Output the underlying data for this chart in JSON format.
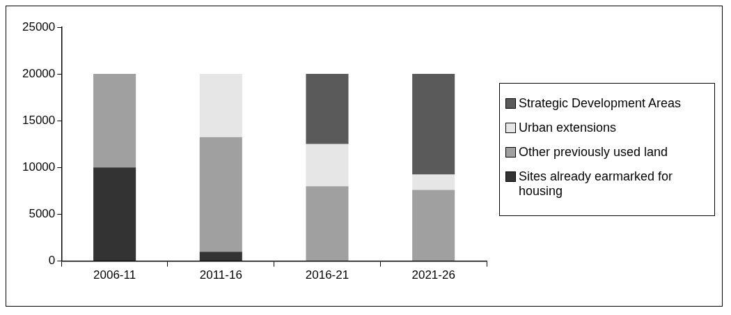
{
  "chart_data": {
    "type": "bar",
    "stacked": true,
    "categories": [
      "2006-11",
      "2011-16",
      "2016-21",
      "2021-26"
    ],
    "series": [
      {
        "name": "Sites already earmarked for housing",
        "color": "#333333",
        "values": [
          10000,
          1000,
          0,
          0
        ]
      },
      {
        "name": "Other previously used land",
        "color": "#a0a0a0",
        "values": [
          10000,
          12250,
          8000,
          7600
        ]
      },
      {
        "name": "Urban extensions",
        "color": "#e6e6e6",
        "values": [
          0,
          6750,
          4500,
          1650
        ]
      },
      {
        "name": "Strategic Development Areas",
        "color": "#5a5a5a",
        "values": [
          0,
          0,
          7500,
          10750
        ]
      }
    ],
    "ylim": [
      0,
      25000
    ],
    "yticks": [
      0,
      5000,
      10000,
      15000,
      20000,
      25000
    ],
    "grid": false,
    "legend": "right"
  }
}
